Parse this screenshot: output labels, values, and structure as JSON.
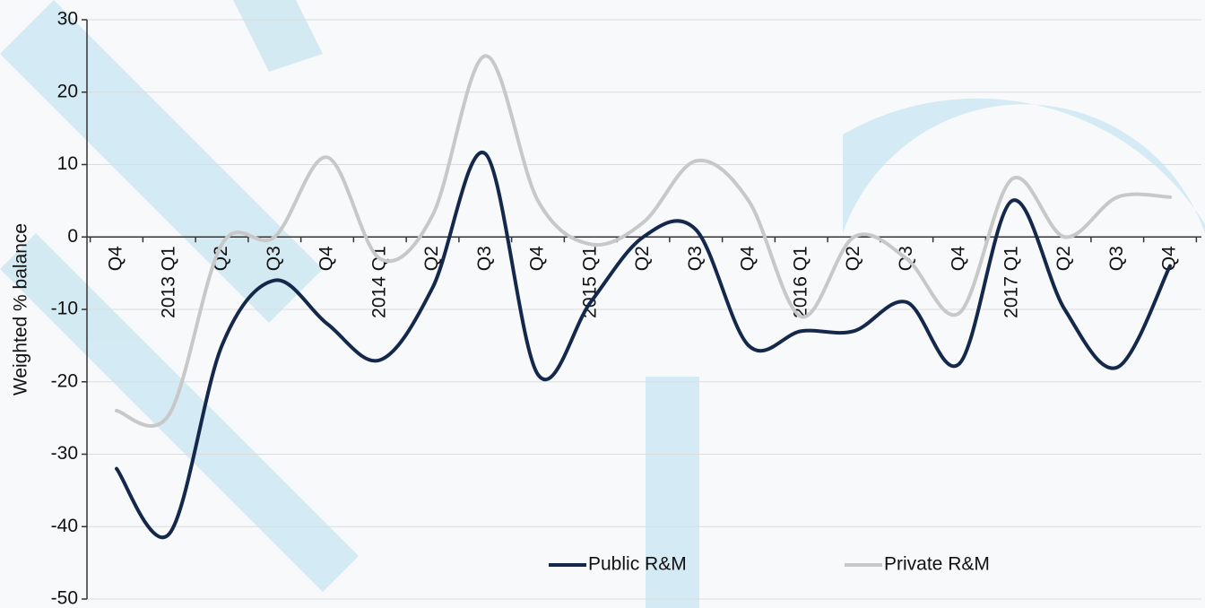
{
  "chart_data": {
    "type": "line",
    "y_label": "Weighted % balance",
    "categories": [
      "Q4",
      "2013 Q1",
      "Q2",
      "Q3",
      "Q4",
      "2014 Q1",
      "Q2",
      "Q3",
      "Q4",
      "2015 Q1",
      "Q2",
      "Q3",
      "Q4",
      "2016 Q1",
      "Q2",
      "Q3",
      "Q4",
      "2017 Q1",
      "Q2",
      "Q3",
      "Q4"
    ],
    "series": [
      {
        "name": "Public R&M",
        "color": "#14284b",
        "values": [
          -32,
          -41,
          -15,
          -6,
          -12,
          -17,
          -7,
          11.5,
          -19,
          -9,
          0,
          1,
          -15,
          -13,
          -13,
          -9,
          -17.5,
          5,
          -10,
          -18,
          -4
        ]
      },
      {
        "name": "Private R&M",
        "color": "#c8c8c8",
        "values": [
          -24,
          -24.5,
          -1,
          0,
          11,
          -3,
          3,
          25,
          5,
          -1,
          2,
          10.5,
          5,
          -11,
          0,
          -3,
          -10.5,
          8,
          0,
          5.5,
          5.5
        ]
      }
    ],
    "ylim": [
      -50,
      30
    ],
    "yticks": [
      -50,
      -40,
      -30,
      -20,
      -10,
      0,
      10,
      20,
      30
    ],
    "grid": true,
    "legend": "bottom"
  }
}
